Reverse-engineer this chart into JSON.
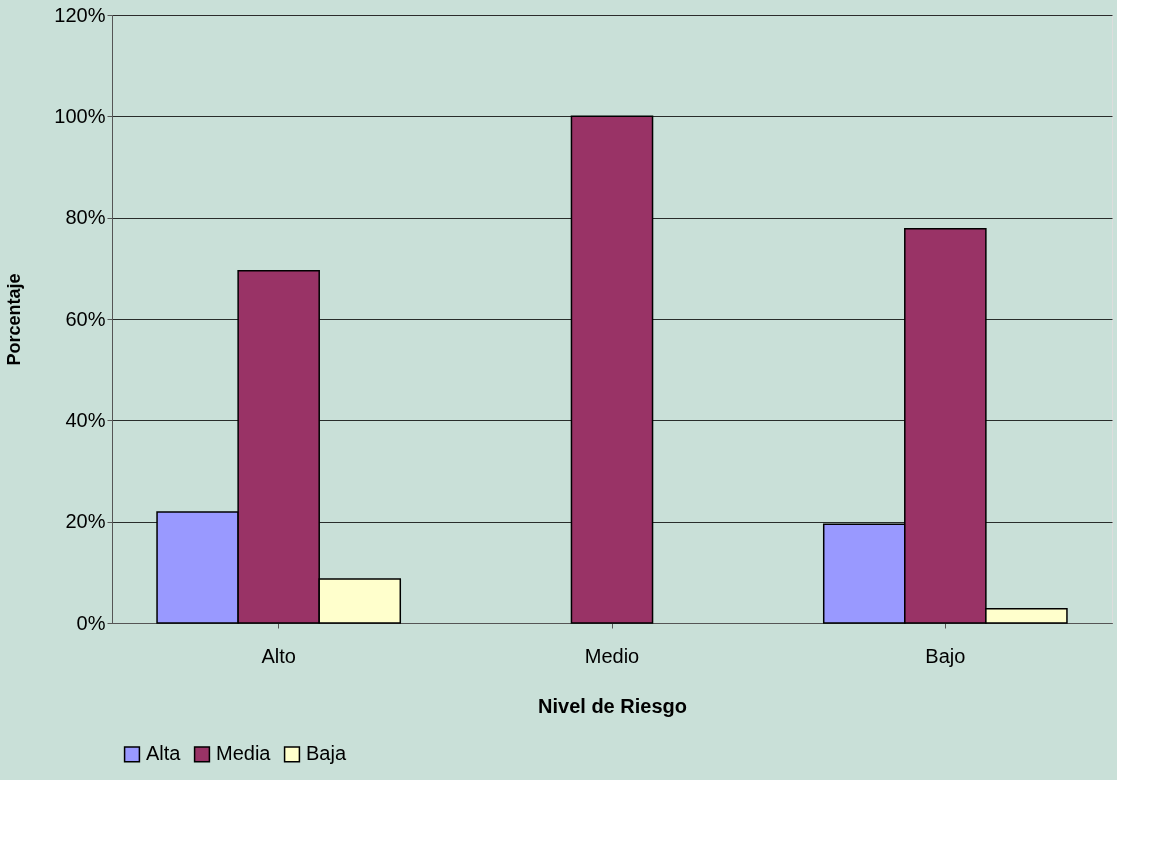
{
  "chart_data": {
    "type": "bar",
    "xlabel": "Nivel de Riesgo",
    "ylabel": "Porcentaje",
    "categories": [
      "Alto",
      "Medio",
      "Bajo"
    ],
    "series": [
      {
        "name": "Alta",
        "color": "#9999ff",
        "values": [
          21.9,
          null,
          19.5
        ]
      },
      {
        "name": "Media",
        "color": "#993366",
        "values": [
          69.5,
          100,
          77.8
        ]
      },
      {
        "name": "Baja",
        "color": "#ffffcc",
        "values": [
          8.7,
          null,
          2.8
        ]
      }
    ],
    "ylim": [
      0,
      120
    ],
    "yticks": [
      {
        "value": 0,
        "label": "0%"
      },
      {
        "value": 20,
        "label": "20%"
      },
      {
        "value": 40,
        "label": "40%"
      },
      {
        "value": 60,
        "label": "60%"
      },
      {
        "value": 80,
        "label": "80%"
      },
      {
        "value": 100,
        "label": "100%"
      },
      {
        "value": 120,
        "label": "120%"
      }
    ],
    "grid": "y",
    "legend": "bottom"
  }
}
